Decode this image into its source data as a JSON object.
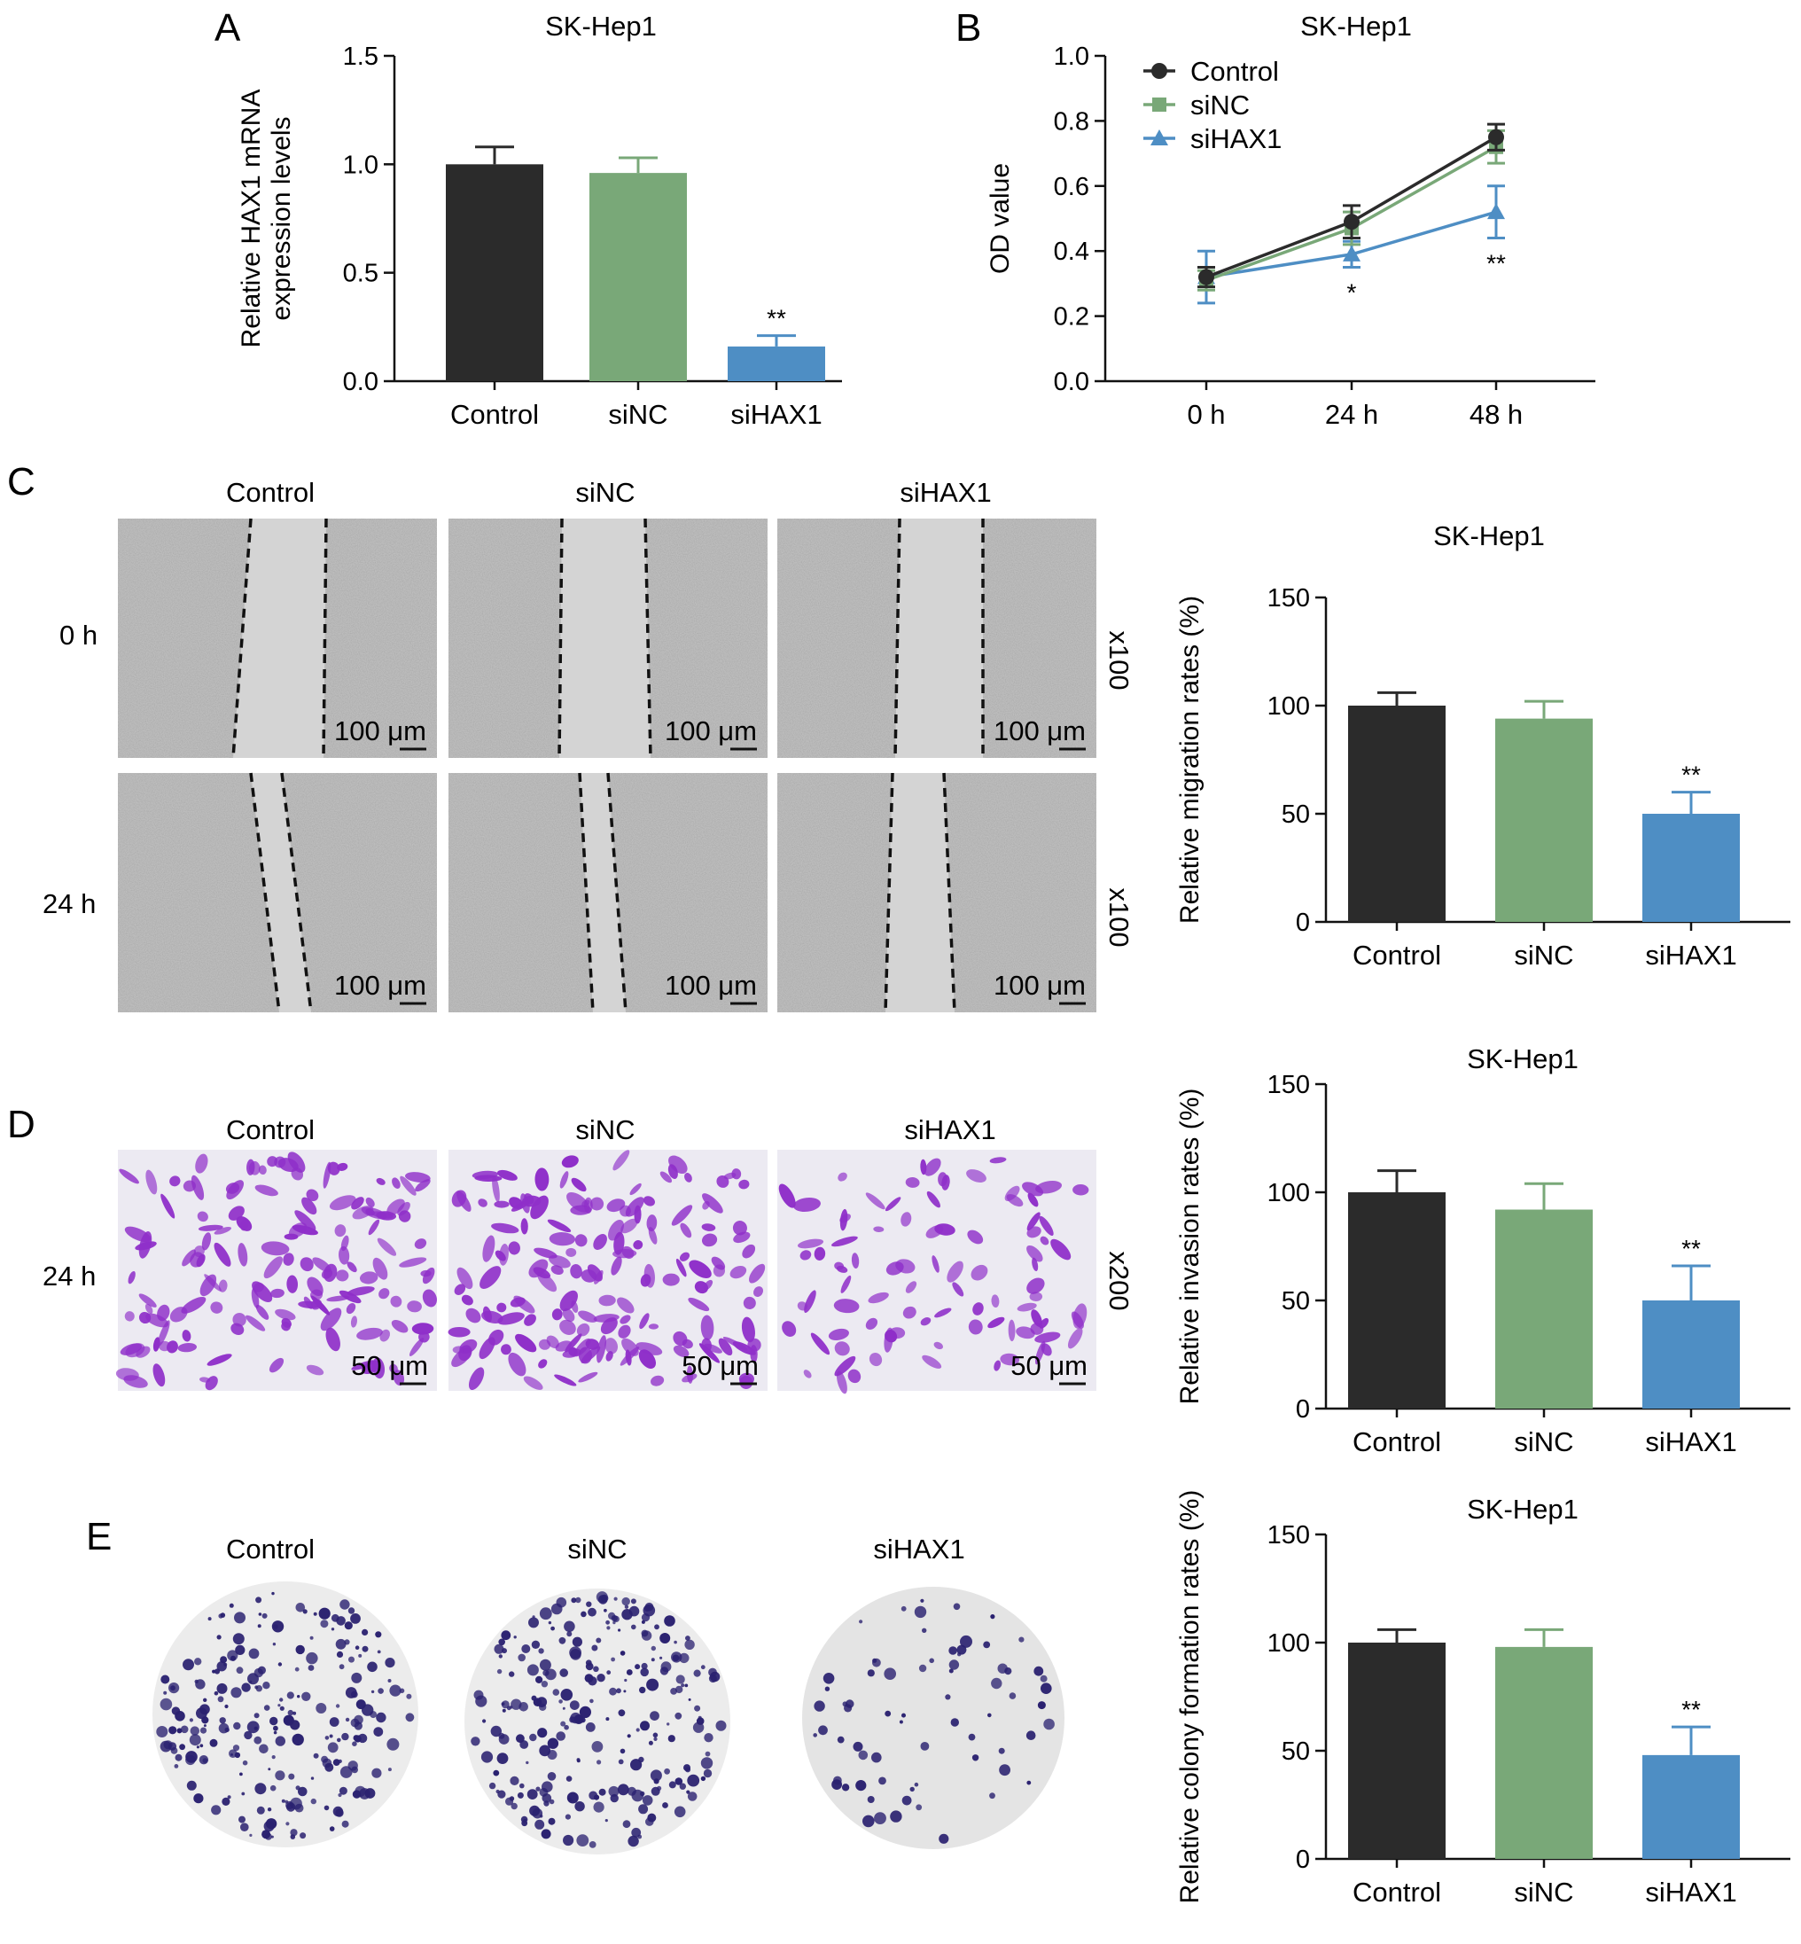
{
  "colors": {
    "control": "#2b2b2b",
    "sinc": "#79a878",
    "sihax1": "#4e8ec4",
    "axis": "#111111",
    "scratch_gap": "#d4d4d4",
    "scratch_field": "#bdbdbd",
    "crystal_violet": "#8f2fc9",
    "colony_dot": "#2a2170",
    "dish_bg": "#ececec"
  },
  "panels": {
    "A": {
      "letter": "A"
    },
    "B": {
      "letter": "B"
    },
    "C": {
      "letter": "C",
      "columns": [
        "Control",
        "siNC",
        "siHAX1"
      ],
      "rows": [
        "0 h",
        "24 h"
      ],
      "magnification": "x100",
      "scale_bar": "100 μm"
    },
    "D": {
      "letter": "D",
      "columns": [
        "Control",
        "siNC",
        "siHAX1"
      ],
      "rows": [
        "24 h"
      ],
      "magnification": "x200",
      "scale_bar": "50 μm"
    },
    "E": {
      "letter": "E",
      "columns": [
        "Control",
        "siNC",
        "siHAX1"
      ]
    }
  },
  "chart_data": [
    {
      "id": "A",
      "type": "bar",
      "title": "SK-Hep1",
      "ylabel": "Relative HAX1 mRNA\nexpression levels",
      "xlabel": "",
      "categories": [
        "Control",
        "siNC",
        "siHAX1"
      ],
      "values": [
        1.0,
        0.96,
        0.16
      ],
      "errors": [
        0.08,
        0.07,
        0.05
      ],
      "significance": [
        "",
        "",
        "**"
      ],
      "ylim": [
        0,
        1.5
      ],
      "yticks": [
        "0.0",
        "0.5",
        "1.0",
        "1.5"
      ],
      "grid": false
    },
    {
      "id": "B",
      "type": "line",
      "title": "SK-Hep1",
      "ylabel": "OD value",
      "xlabel": "",
      "x": [
        "0 h",
        "24 h",
        "48 h"
      ],
      "series": [
        {
          "name": "Control",
          "values": [
            0.32,
            0.49,
            0.75
          ],
          "errors": [
            0.03,
            0.05,
            0.04
          ],
          "marker": "circle"
        },
        {
          "name": "siNC",
          "values": [
            0.31,
            0.47,
            0.72
          ],
          "errors": [
            0.03,
            0.05,
            0.05
          ],
          "marker": "square"
        },
        {
          "name": "siHAX1",
          "values": [
            0.32,
            0.39,
            0.52
          ],
          "errors": [
            0.08,
            0.04,
            0.08
          ],
          "marker": "triangle"
        }
      ],
      "significance": [
        "",
        "*",
        "**"
      ],
      "ylim": [
        0,
        1.0
      ],
      "yticks": [
        "0.0",
        "0.2",
        "0.4",
        "0.6",
        "0.8",
        "1.0"
      ],
      "legend": "top-left",
      "grid": false
    },
    {
      "id": "C",
      "type": "bar",
      "title": "SK-Hep1",
      "ylabel": "Relative migration rates (%)",
      "xlabel": "",
      "categories": [
        "Control",
        "siNC",
        "siHAX1"
      ],
      "values": [
        100,
        94,
        50
      ],
      "errors": [
        6,
        8,
        10
      ],
      "significance": [
        "",
        "",
        "**"
      ],
      "ylim": [
        0,
        150
      ],
      "yticks": [
        "0",
        "50",
        "100",
        "150"
      ],
      "grid": false
    },
    {
      "id": "D",
      "type": "bar",
      "title": "SK-Hep1",
      "ylabel": "Relative invasion rates (%)",
      "xlabel": "",
      "categories": [
        "Control",
        "siNC",
        "siHAX1"
      ],
      "values": [
        100,
        92,
        50
      ],
      "errors": [
        10,
        12,
        16
      ],
      "significance": [
        "",
        "",
        "**"
      ],
      "ylim": [
        0,
        150
      ],
      "yticks": [
        "0",
        "50",
        "100",
        "150"
      ],
      "grid": false
    },
    {
      "id": "E",
      "type": "bar",
      "title": "SK-Hep1",
      "ylabel": "Relative colony formation rates (%)",
      "xlabel": "",
      "categories": [
        "Control",
        "siNC",
        "siHAX1"
      ],
      "values": [
        100,
        98,
        48
      ],
      "errors": [
        6,
        8,
        13
      ],
      "significance": [
        "",
        "",
        "**"
      ],
      "ylim": [
        0,
        150
      ],
      "yticks": [
        "0",
        "50",
        "100",
        "150"
      ],
      "grid": false
    }
  ]
}
